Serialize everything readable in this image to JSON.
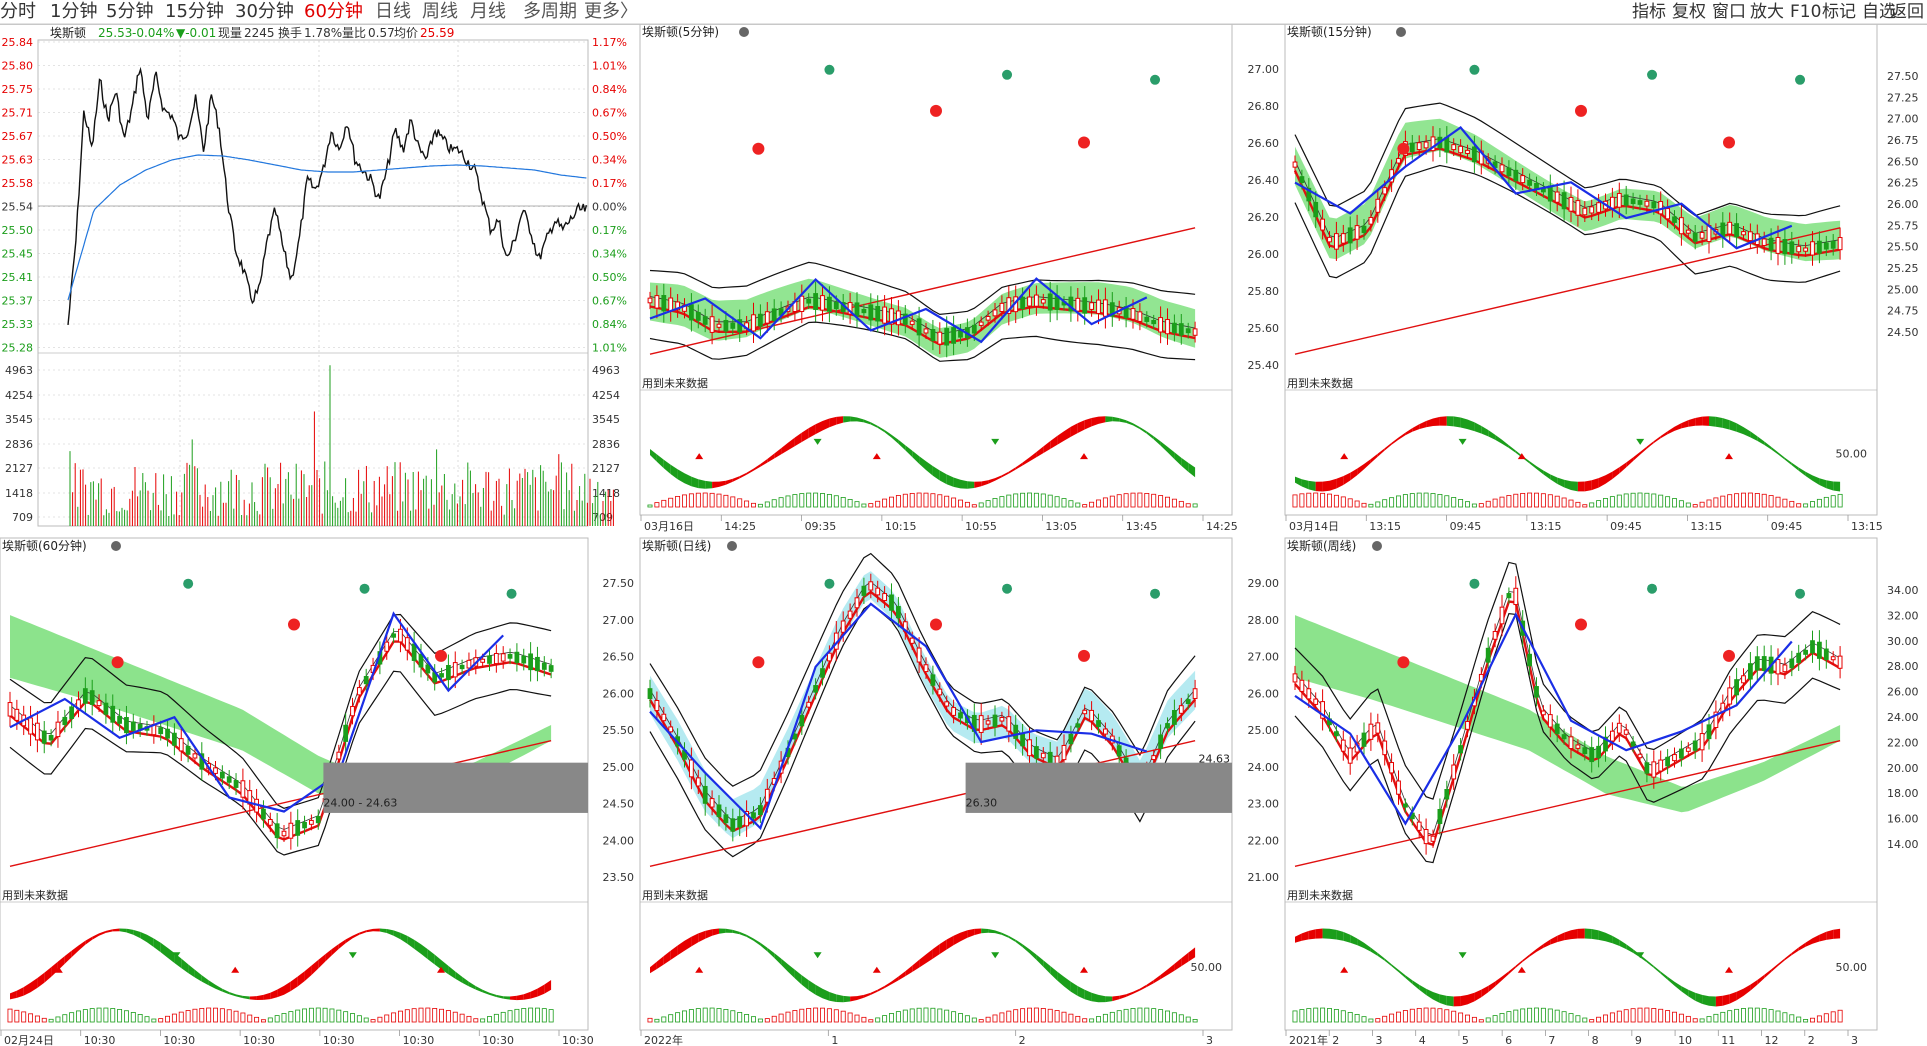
{
  "toolbar": {
    "timeframes": [
      {
        "label": "分时",
        "state": "normal"
      },
      {
        "label": "1分钟",
        "state": "normal"
      },
      {
        "label": "5分钟",
        "state": "normal"
      },
      {
        "label": "15分钟",
        "state": "normal"
      },
      {
        "label": "30分钟",
        "state": "normal"
      },
      {
        "label": "60分钟",
        "state": "active"
      },
      {
        "label": "日线",
        "state": "muted"
      },
      {
        "label": "周线",
        "state": "muted"
      },
      {
        "label": "月线",
        "state": "muted"
      },
      {
        "label": "多周期",
        "state": "muted"
      },
      {
        "label": "更多〉",
        "state": "muted"
      }
    ],
    "right_items": [
      "指标",
      "复权",
      "窗口",
      "放大",
      "F10",
      "标记",
      "自选",
      "返回"
    ]
  },
  "intraday": {
    "title": "埃斯顿",
    "price": "25.53",
    "change_pct": "-0.04%",
    "change": "▼-0.01",
    "volume_label": "现量",
    "volume": "2245",
    "turnover_label": "换手",
    "turnover": "1.78%",
    "volume_ratio_label": "量比",
    "volume_ratio": "0.57",
    "avg_label": "均价",
    "avg_price": "25.59",
    "price_ticks": [
      "25.84",
      "25.80",
      "25.75",
      "25.71",
      "25.67",
      "25.63",
      "25.58",
      "25.54",
      "25.50",
      "25.45",
      "25.41",
      "25.37",
      "25.33",
      "25.28"
    ],
    "pct_ticks": [
      "1.17%",
      "1.01%",
      "0.84%",
      "0.67%",
      "0.50%",
      "0.34%",
      "0.17%",
      "0.00%",
      "0.17%",
      "0.34%",
      "0.50%",
      "0.67%",
      "0.84%",
      "1.01%"
    ],
    "vol_ticks": [
      "4963",
      "4254",
      "3545",
      "2836",
      "2127",
      "1418",
      "709"
    ]
  },
  "panels": [
    {
      "id": "p5",
      "title": "埃斯顿(5分钟)",
      "footnote": "用到未来数据",
      "ind_level": "",
      "right_ticks": [],
      "x_labels": [
        "03月16日",
        "14:25",
        "09:35",
        "10:15",
        "10:55",
        "13:05",
        "13:45",
        "14:25"
      ],
      "note_left": "",
      "note_right": ""
    },
    {
      "id": "p15",
      "title": "埃斯顿(15分钟)",
      "footnote": "用到未来数据",
      "ind_level": "50.00",
      "left_ticks": [
        "27.00",
        "26.80",
        "26.60",
        "26.40",
        "26.20",
        "26.00",
        "25.80",
        "25.60",
        "25.40"
      ],
      "right_ticks": [
        "27.50",
        "27.25",
        "27.00",
        "26.75",
        "26.50",
        "26.25",
        "26.00",
        "25.75",
        "25.50",
        "25.25",
        "25.00",
        "24.75",
        "24.50"
      ],
      "x_labels": [
        "03月14日",
        "13:15",
        "09:45",
        "13:15",
        "09:45",
        "13:15",
        "09:45",
        "13:15"
      ],
      "note_left": "",
      "note_right": ""
    },
    {
      "id": "p60",
      "title": "埃斯顿(60分钟)",
      "footnote": "用到未来数据",
      "ind_level": "",
      "left_ticks": [],
      "right_ticks": [],
      "x_labels": [
        "02月24日",
        "10:30",
        "10:30",
        "10:30",
        "10:30",
        "10:30",
        "10:30",
        "10:30"
      ],
      "note_left": "24.00 - 24.63",
      "note_right": ""
    },
    {
      "id": "pday",
      "title": "埃斯顿(日线)",
      "footnote": "用到未来数据",
      "ind_level": "50.00",
      "left_ticks": [
        "27.50",
        "27.00",
        "26.50",
        "26.00",
        "25.50",
        "25.00",
        "24.50",
        "24.00",
        "23.50"
      ],
      "right_ticks": [],
      "x_labels": [
        "2022年",
        "1",
        "2",
        "3"
      ],
      "note_left": "26.30",
      "note_right": "24.63"
    },
    {
      "id": "pweek",
      "title": "埃斯顿(周线)",
      "footnote": "用到未来数据",
      "ind_level": "50.00",
      "left_ticks": [
        "29.00",
        "28.00",
        "27.00",
        "26.00",
        "25.00",
        "24.00",
        "23.00",
        "22.00",
        "21.00"
      ],
      "right_ticks": [
        "34.00",
        "32.00",
        "30.00",
        "28.00",
        "26.00",
        "24.00",
        "22.00",
        "20.00",
        "18.00",
        "16.00",
        "14.00"
      ],
      "x_labels": [
        "2021年",
        "2",
        "3",
        "4",
        "5",
        "6",
        "7",
        "8",
        "9",
        "10",
        "11",
        "12",
        "2",
        "3"
      ],
      "note_left": "",
      "note_right": ""
    }
  ],
  "colors": {
    "up": "#e60000",
    "down": "#1b9e1b",
    "zigzag": "#1a2ee6",
    "cloud_green": "#7fe07f",
    "cloud_cyan": "#a8e6ee",
    "ma_red": "#e01010",
    "grid": "#c8c8c8"
  }
}
